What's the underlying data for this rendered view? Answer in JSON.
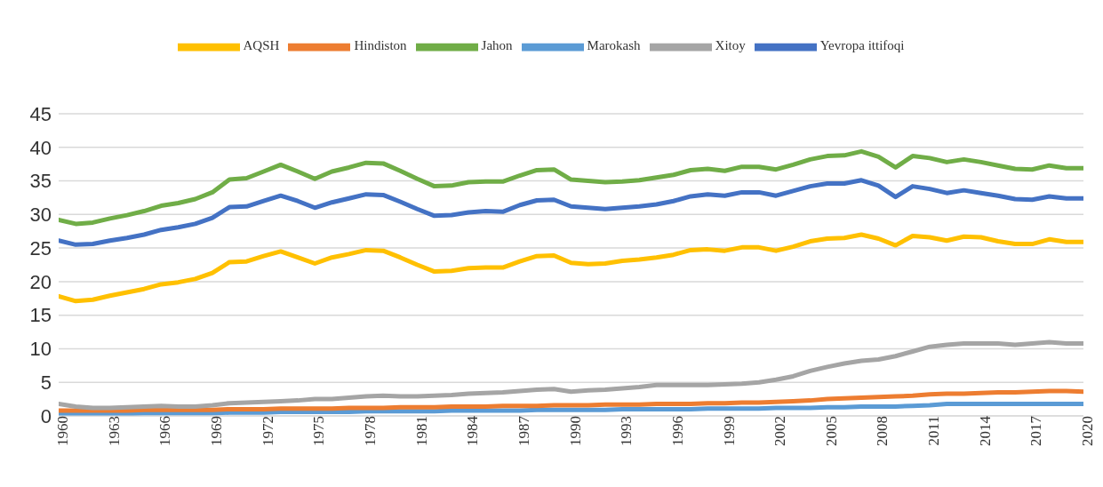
{
  "chart_data": {
    "type": "line",
    "x": [
      1960,
      1961,
      1962,
      1963,
      1964,
      1965,
      1966,
      1967,
      1968,
      1969,
      1970,
      1971,
      1972,
      1973,
      1974,
      1975,
      1976,
      1977,
      1978,
      1979,
      1980,
      1981,
      1982,
      1983,
      1984,
      1985,
      1986,
      1987,
      1988,
      1989,
      1990,
      1991,
      1992,
      1993,
      1994,
      1995,
      1996,
      1997,
      1998,
      1999,
      2000,
      2001,
      2002,
      2003,
      2004,
      2005,
      2006,
      2007,
      2008,
      2009,
      2010,
      2011,
      2012,
      2013,
      2014,
      2015,
      2016,
      2017,
      2018,
      2019,
      2020
    ],
    "series": [
      {
        "name": "Marokash",
        "color": "#5b9bd5",
        "values": [
          0.3,
          0.3,
          0.3,
          0.3,
          0.3,
          0.4,
          0.4,
          0.4,
          0.4,
          0.4,
          0.5,
          0.5,
          0.5,
          0.6,
          0.6,
          0.6,
          0.6,
          0.6,
          0.7,
          0.7,
          0.7,
          0.7,
          0.7,
          0.8,
          0.8,
          0.8,
          0.8,
          0.8,
          0.9,
          0.9,
          0.9,
          0.9,
          0.9,
          1.0,
          1.0,
          1.0,
          1.0,
          1.0,
          1.1,
          1.1,
          1.1,
          1.1,
          1.2,
          1.2,
          1.2,
          1.3,
          1.3,
          1.4,
          1.4,
          1.4,
          1.5,
          1.6,
          1.8,
          1.8,
          1.8,
          1.8,
          1.8,
          1.8,
          1.8,
          1.8,
          1.8
        ]
      },
      {
        "name": "Hindiston",
        "color": "#ed7d31",
        "values": [
          0.8,
          0.8,
          0.8,
          0.8,
          0.8,
          0.9,
          0.9,
          0.9,
          0.9,
          0.9,
          1.0,
          1.0,
          1.0,
          1.1,
          1.1,
          1.1,
          1.1,
          1.2,
          1.2,
          1.2,
          1.3,
          1.3,
          1.3,
          1.4,
          1.4,
          1.4,
          1.5,
          1.5,
          1.5,
          1.6,
          1.6,
          1.6,
          1.7,
          1.7,
          1.7,
          1.8,
          1.8,
          1.8,
          1.9,
          1.9,
          2.0,
          2.0,
          2.1,
          2.2,
          2.3,
          2.5,
          2.6,
          2.7,
          2.8,
          2.9,
          3.0,
          3.2,
          3.3,
          3.3,
          3.4,
          3.5,
          3.5,
          3.6,
          3.7,
          3.7,
          3.6
        ]
      },
      {
        "name": "Xitoy",
        "color": "#a5a5a5",
        "values": [
          1.8,
          1.4,
          1.2,
          1.2,
          1.3,
          1.4,
          1.5,
          1.4,
          1.4,
          1.6,
          1.9,
          2.0,
          2.1,
          2.2,
          2.3,
          2.5,
          2.5,
          2.7,
          2.9,
          3.0,
          2.9,
          2.9,
          3.0,
          3.1,
          3.3,
          3.4,
          3.5,
          3.7,
          3.9,
          4.0,
          3.6,
          3.8,
          3.9,
          4.1,
          4.3,
          4.6,
          4.6,
          4.6,
          4.6,
          4.7,
          4.8,
          5.0,
          5.4,
          5.9,
          6.7,
          7.3,
          7.8,
          8.2,
          8.4,
          8.9,
          9.6,
          10.3,
          10.6,
          10.8,
          10.8,
          10.8,
          10.6,
          10.8,
          11.0,
          10.8,
          10.8
        ]
      },
      {
        "name": "AQSH",
        "color": "#ffc000",
        "values": [
          17.8,
          17.1,
          17.3,
          17.9,
          18.4,
          18.9,
          19.6,
          19.9,
          20.4,
          21.3,
          22.9,
          23.0,
          23.8,
          24.5,
          23.6,
          22.7,
          23.6,
          24.1,
          24.7,
          24.6,
          23.6,
          22.5,
          21.5,
          21.6,
          22.0,
          22.1,
          22.1,
          23.0,
          23.8,
          23.9,
          22.8,
          22.6,
          22.7,
          23.1,
          23.3,
          23.6,
          24.0,
          24.7,
          24.8,
          24.6,
          25.1,
          25.1,
          24.6,
          25.2,
          26.0,
          26.4,
          26.5,
          27.0,
          26.4,
          25.4,
          26.8,
          26.6,
          26.1,
          26.7,
          26.6,
          26.0,
          25.6,
          25.6,
          26.3,
          25.9,
          25.9
        ]
      },
      {
        "name": "Yevropa ittifoqi",
        "color": "#4472c4",
        "values": [
          26.1,
          25.5,
          25.6,
          26.1,
          26.5,
          27.0,
          27.7,
          28.1,
          28.6,
          29.5,
          31.1,
          31.2,
          32.0,
          32.8,
          32.0,
          31.0,
          31.8,
          32.4,
          33.0,
          32.9,
          31.9,
          30.8,
          29.8,
          29.9,
          30.3,
          30.5,
          30.4,
          31.4,
          32.1,
          32.2,
          31.2,
          31.0,
          30.8,
          31.0,
          31.2,
          31.5,
          32.0,
          32.7,
          33.0,
          32.8,
          33.3,
          33.3,
          32.8,
          33.5,
          34.2,
          34.6,
          34.6,
          35.1,
          34.3,
          32.6,
          34.2,
          33.8,
          33.2,
          33.6,
          33.2,
          32.8,
          32.3,
          32.2,
          32.7,
          32.4,
          32.4
        ]
      },
      {
        "name": "Jahon",
        "color": "#70ad47",
        "values": [
          29.2,
          28.6,
          28.8,
          29.4,
          29.9,
          30.5,
          31.3,
          31.7,
          32.3,
          33.3,
          35.2,
          35.4,
          36.4,
          37.4,
          36.4,
          35.3,
          36.4,
          37.0,
          37.7,
          37.6,
          36.5,
          35.3,
          34.2,
          34.3,
          34.8,
          34.9,
          34.9,
          35.8,
          36.6,
          36.7,
          35.2,
          35.0,
          34.8,
          34.9,
          35.1,
          35.5,
          35.9,
          36.6,
          36.8,
          36.5,
          37.1,
          37.1,
          36.7,
          37.4,
          38.2,
          38.7,
          38.8,
          39.4,
          38.6,
          37.0,
          38.7,
          38.4,
          37.8,
          38.2,
          37.8,
          37.3,
          36.8,
          36.7,
          37.3,
          36.9,
          36.9
        ]
      }
    ],
    "xlim": [
      1960,
      2020
    ],
    "xticks": [
      1960,
      1963,
      1966,
      1969,
      1972,
      1975,
      1978,
      1981,
      1984,
      1987,
      1990,
      1993,
      1996,
      1999,
      2002,
      2005,
      2008,
      2011,
      2014,
      2017,
      2020
    ],
    "ylim": [
      0,
      45
    ],
    "yticks": [
      0,
      5,
      10,
      15,
      20,
      25,
      30,
      35,
      40,
      45
    ],
    "grid": "y",
    "legend": "top",
    "marker": "none",
    "line_style": "solid"
  }
}
